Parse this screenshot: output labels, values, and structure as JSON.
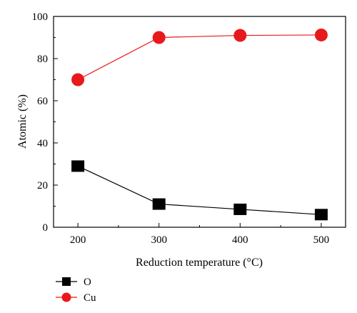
{
  "chart_data": {
    "type": "line",
    "title": "",
    "xlabel": "Reduction temperature (°C)",
    "ylabel": "Atomic (%)",
    "x": [
      200,
      300,
      400,
      500
    ],
    "xticks": [
      "200",
      "300",
      "400",
      "500"
    ],
    "xlim": [
      170,
      530
    ],
    "ylim": [
      0,
      100
    ],
    "yticks": [
      "0",
      "20",
      "40",
      "60",
      "80",
      "100"
    ],
    "grid": false,
    "legend_position": "bottom-left",
    "series": [
      {
        "name": "O",
        "marker": "square",
        "color": "#000000",
        "values": [
          29,
          11,
          8.5,
          6
        ]
      },
      {
        "name": "Cu",
        "marker": "circle",
        "color": "#e8191b",
        "values": [
          70,
          90,
          91,
          91.2
        ]
      }
    ]
  }
}
